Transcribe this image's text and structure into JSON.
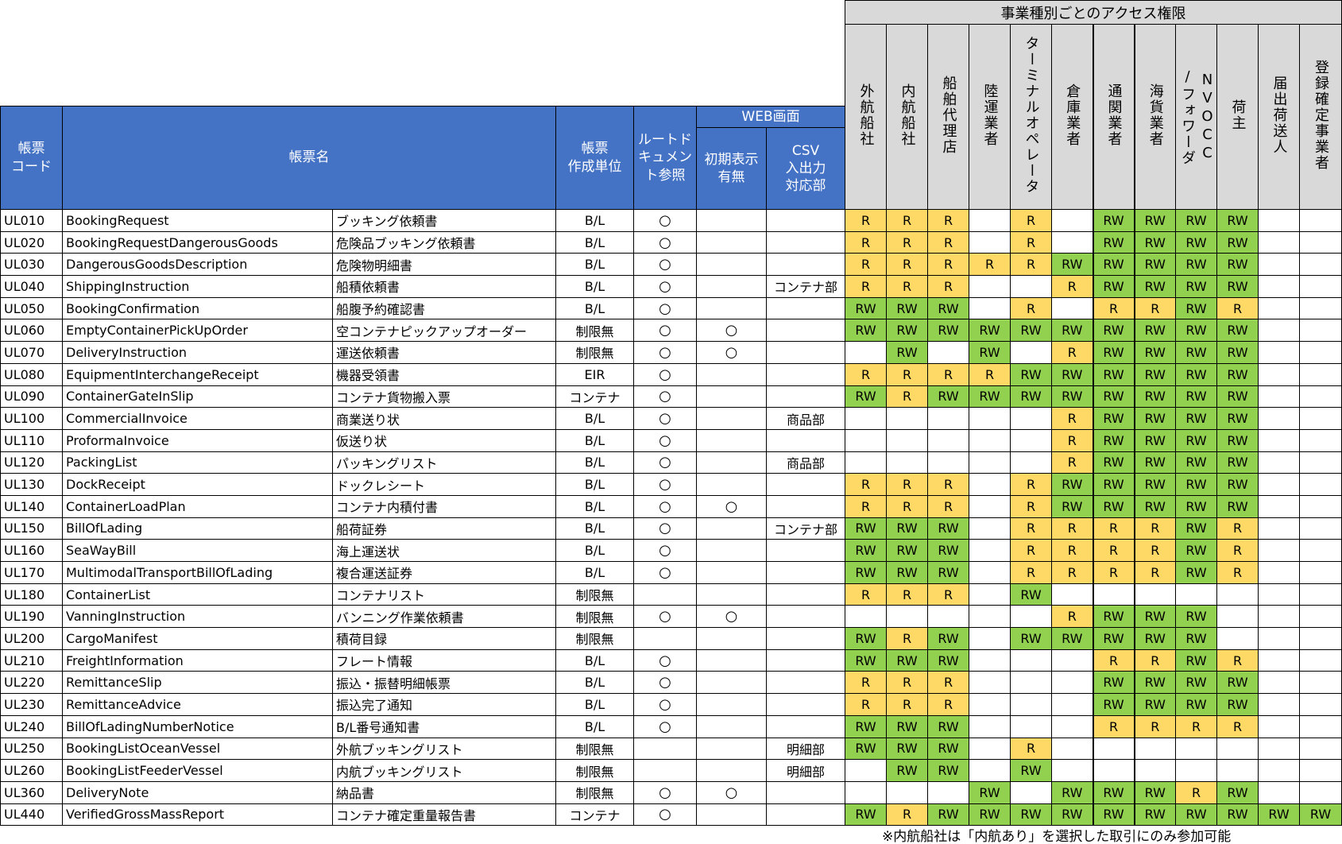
{
  "header": {
    "code": "帳票\nコード",
    "name": "帳票名",
    "unit": "帳票\n作成単位",
    "route": "ルートド\nキュメン\nト参照",
    "web": "WEB画面",
    "initial": "初期表示\n有無",
    "csv": "CSV\n入出力\n対応部",
    "access_title": "事業種別ごとのアクセス権限",
    "access_columns": [
      "外航船社",
      "内航船社",
      "船舶代理店",
      "陸運業者",
      "ターミナルオペレータ",
      "倉庫業者",
      "通関業者",
      "海貨業者",
      "NVOCC",
      "荷主",
      "届出荷送人",
      "登録確定事業者"
    ],
    "access_column_9_second_line": "/フォワーダ"
  },
  "colors": {
    "header_blue": "#4472c4",
    "header_gray": "#d9d9d9",
    "read": "#ffd966",
    "read_write": "#92d050"
  },
  "rows": [
    {
      "code": "UL010",
      "en": "BookingRequest",
      "ja": "ブッキング依頼書",
      "unit": "B/L",
      "route": "○",
      "initial": "",
      "csv": "",
      "access": [
        "R",
        "R",
        "R",
        "",
        "R",
        "",
        "RW",
        "RW",
        "RW",
        "RW",
        "",
        ""
      ]
    },
    {
      "code": "UL020",
      "en": "BookingRequestDangerousGoods",
      "ja": "危険品ブッキング依頼書",
      "unit": "B/L",
      "route": "○",
      "initial": "",
      "csv": "",
      "access": [
        "R",
        "R",
        "R",
        "",
        "R",
        "",
        "RW",
        "RW",
        "RW",
        "RW",
        "",
        ""
      ]
    },
    {
      "code": "UL030",
      "en": "DangerousGoodsDescription",
      "ja": "危険物明細書",
      "unit": "B/L",
      "route": "○",
      "initial": "",
      "csv": "",
      "access": [
        "R",
        "R",
        "R",
        "R",
        "R",
        "RW",
        "RW",
        "RW",
        "RW",
        "RW",
        "",
        ""
      ]
    },
    {
      "code": "UL040",
      "en": "ShippingInstruction",
      "ja": "船積依頼書",
      "unit": "B/L",
      "route": "○",
      "initial": "",
      "csv": "コンテナ部",
      "access": [
        "R",
        "R",
        "R",
        "",
        "",
        "R",
        "RW",
        "RW",
        "RW",
        "RW",
        "",
        ""
      ]
    },
    {
      "code": "UL050",
      "en": "BookingConfirmation",
      "ja": "船腹予約確認書",
      "unit": "B/L",
      "route": "○",
      "initial": "",
      "csv": "",
      "access": [
        "RW",
        "RW",
        "RW",
        "",
        "R",
        "",
        "R",
        "R",
        "RW",
        "R",
        "",
        ""
      ]
    },
    {
      "code": "UL060",
      "en": "EmptyContainerPickUpOrder",
      "ja": "空コンテナピックアップオーダー",
      "unit": "制限無",
      "route": "○",
      "initial": "○",
      "csv": "",
      "access": [
        "RW",
        "RW",
        "RW",
        "RW",
        "RW",
        "RW",
        "RW",
        "RW",
        "RW",
        "RW",
        "",
        ""
      ]
    },
    {
      "code": "UL070",
      "en": "DeliveryInstruction",
      "ja": "運送依頼書",
      "unit": "制限無",
      "route": "○",
      "initial": "○",
      "csv": "",
      "access": [
        "",
        "RW",
        "",
        "RW",
        "",
        "R",
        "RW",
        "RW",
        "RW",
        "RW",
        "",
        ""
      ]
    },
    {
      "code": "UL080",
      "en": "EquipmentInterchangeReceipt",
      "ja": "機器受領書",
      "unit": "EIR",
      "route": "○",
      "initial": "",
      "csv": "",
      "access": [
        "R",
        "R",
        "R",
        "R",
        "RW",
        "RW",
        "RW",
        "RW",
        "RW",
        "RW",
        "",
        ""
      ]
    },
    {
      "code": "UL090",
      "en": "ContainerGateInSlip",
      "ja": "コンテナ貨物搬入票",
      "unit": "コンテナ",
      "route": "○",
      "initial": "",
      "csv": "",
      "access": [
        "RW",
        "R",
        "RW",
        "RW",
        "RW",
        "RW",
        "RW",
        "RW",
        "RW",
        "RW",
        "",
        ""
      ]
    },
    {
      "code": "UL100",
      "en": "CommercialInvoice",
      "ja": "商業送り状",
      "unit": "B/L",
      "route": "○",
      "initial": "",
      "csv": "商品部",
      "access": [
        "",
        "",
        "",
        "",
        "",
        "R",
        "RW",
        "RW",
        "RW",
        "RW",
        "",
        ""
      ]
    },
    {
      "code": "UL110",
      "en": "ProformaInvoice",
      "ja": "仮送り状",
      "unit": "B/L",
      "route": "○",
      "initial": "",
      "csv": "",
      "access": [
        "",
        "",
        "",
        "",
        "",
        "R",
        "RW",
        "RW",
        "RW",
        "RW",
        "",
        ""
      ]
    },
    {
      "code": "UL120",
      "en": "PackingList",
      "ja": "パッキングリスト",
      "unit": "B/L",
      "route": "○",
      "initial": "",
      "csv": "商品部",
      "access": [
        "",
        "",
        "",
        "",
        "",
        "R",
        "RW",
        "RW",
        "RW",
        "RW",
        "",
        ""
      ]
    },
    {
      "code": "UL130",
      "en": "DockReceipt",
      "ja": "ドックレシート",
      "unit": "B/L",
      "route": "○",
      "initial": "",
      "csv": "",
      "access": [
        "R",
        "R",
        "R",
        "",
        "R",
        "RW",
        "RW",
        "RW",
        "RW",
        "RW",
        "",
        ""
      ]
    },
    {
      "code": "UL140",
      "en": "ContainerLoadPlan",
      "ja": "コンテナ内積付書",
      "unit": "B/L",
      "route": "○",
      "initial": "○",
      "csv": "",
      "access": [
        "R",
        "R",
        "R",
        "",
        "R",
        "RW",
        "RW",
        "RW",
        "RW",
        "RW",
        "",
        ""
      ]
    },
    {
      "code": "UL150",
      "en": "BillOfLading",
      "ja": "船荷証券",
      "unit": "B/L",
      "route": "○",
      "initial": "",
      "csv": "コンテナ部",
      "access": [
        "RW",
        "RW",
        "RW",
        "",
        "R",
        "R",
        "R",
        "R",
        "RW",
        "R",
        "",
        ""
      ]
    },
    {
      "code": "UL160",
      "en": "SeaWayBill",
      "ja": "海上運送状",
      "unit": "B/L",
      "route": "○",
      "initial": "",
      "csv": "",
      "access": [
        "RW",
        "RW",
        "RW",
        "",
        "R",
        "R",
        "R",
        "R",
        "RW",
        "R",
        "",
        ""
      ]
    },
    {
      "code": "UL170",
      "en": "MultimodalTransportBillOfLading",
      "ja": "複合運送証券",
      "unit": "B/L",
      "route": "○",
      "initial": "",
      "csv": "",
      "access": [
        "RW",
        "RW",
        "RW",
        "",
        "R",
        "R",
        "R",
        "R",
        "RW",
        "R",
        "",
        ""
      ]
    },
    {
      "code": "UL180",
      "en": "ContainerList",
      "ja": "コンテナリスト",
      "unit": "制限無",
      "route": "",
      "initial": "",
      "csv": "",
      "access": [
        "R",
        "R",
        "R",
        "",
        "RW",
        "",
        "",
        "",
        "",
        "",
        "",
        ""
      ]
    },
    {
      "code": "UL190",
      "en": "VanningInstruction",
      "ja": "バンニング作業依頼書",
      "unit": "制限無",
      "route": "○",
      "initial": "○",
      "csv": "",
      "access": [
        "",
        "",
        "",
        "",
        "",
        "R",
        "RW",
        "RW",
        "RW",
        "",
        "",
        ""
      ]
    },
    {
      "code": "UL200",
      "en": "CargoManifest",
      "ja": "積荷目録",
      "unit": "制限無",
      "route": "",
      "initial": "",
      "csv": "",
      "access": [
        "RW",
        "R",
        "RW",
        "",
        "RW",
        "RW",
        "RW",
        "RW",
        "RW",
        "",
        "",
        ""
      ]
    },
    {
      "code": "UL210",
      "en": "FreightInformation",
      "ja": "フレート情報",
      "unit": "B/L",
      "route": "○",
      "initial": "",
      "csv": "",
      "access": [
        "RW",
        "RW",
        "RW",
        "",
        "",
        "",
        "R",
        "R",
        "RW",
        "R",
        "",
        ""
      ]
    },
    {
      "code": "UL220",
      "en": "RemittanceSlip",
      "ja": "振込・振替明細帳票",
      "unit": "B/L",
      "route": "○",
      "initial": "",
      "csv": "",
      "access": [
        "R",
        "R",
        "R",
        "",
        "",
        "",
        "RW",
        "RW",
        "RW",
        "RW",
        "",
        ""
      ]
    },
    {
      "code": "UL230",
      "en": "RemittanceAdvice",
      "ja": "振込完了通知",
      "unit": "B/L",
      "route": "○",
      "initial": "",
      "csv": "",
      "access": [
        "R",
        "R",
        "R",
        "",
        "",
        "",
        "RW",
        "RW",
        "RW",
        "RW",
        "",
        ""
      ]
    },
    {
      "code": "UL240",
      "en": "BillOfLadingNumberNotice",
      "ja": "B/L番号通知書",
      "unit": "B/L",
      "route": "○",
      "initial": "",
      "csv": "",
      "access": [
        "RW",
        "RW",
        "RW",
        "",
        "",
        "",
        "R",
        "R",
        "R",
        "R",
        "",
        ""
      ]
    },
    {
      "code": "UL250",
      "en": "BookingListOceanVessel",
      "ja": "外航ブッキングリスト",
      "unit": "制限無",
      "route": "",
      "initial": "",
      "csv": "明細部",
      "access": [
        "RW",
        "RW",
        "RW",
        "",
        "R",
        "",
        "",
        "",
        "",
        "",
        "",
        ""
      ]
    },
    {
      "code": "UL260",
      "en": "BookingListFeederVessel",
      "ja": "内航ブッキングリスト",
      "unit": "制限無",
      "route": "",
      "initial": "",
      "csv": "明細部",
      "access": [
        "",
        "RW",
        "RW",
        "",
        "RW",
        "",
        "",
        "",
        "",
        "",
        "",
        ""
      ]
    },
    {
      "code": "UL360",
      "en": "DeliveryNote",
      "ja": "納品書",
      "unit": "制限無",
      "route": "○",
      "initial": "○",
      "csv": "",
      "access": [
        "",
        "",
        "",
        "RW",
        "",
        "RW",
        "RW",
        "RW",
        "R",
        "RW",
        "",
        ""
      ]
    },
    {
      "code": "UL440",
      "en": "VerifiedGrossMassReport",
      "ja": "コンテナ確定重量報告書",
      "unit": "コンテナ",
      "route": "○",
      "initial": "",
      "csv": "",
      "access": [
        "RW",
        "R",
        "RW",
        "RW",
        "RW",
        "RW",
        "RW",
        "RW",
        "RW",
        "RW",
        "RW",
        "RW"
      ]
    }
  ],
  "footnote": "※内航船社は「内航あり」を選択した取引にのみ参加可能"
}
